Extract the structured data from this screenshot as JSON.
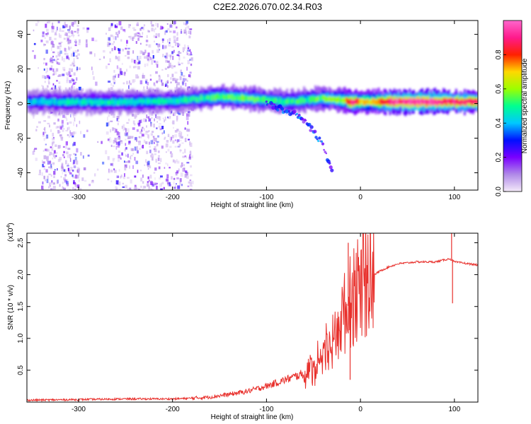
{
  "title": "C2E2.2026.070.02.34.R03",
  "chart_data": [
    {
      "type": "heatmap",
      "title": "C2E2.2026.070.02.34.R03",
      "xlabel": "Height of straight line (km)",
      "ylabel": "Frequency (Hz)",
      "xlim": [
        -355,
        125
      ],
      "ylim": [
        -50,
        48
      ],
      "xticks": [
        -300,
        -200,
        -100,
        0,
        100
      ],
      "yticks": [
        -40,
        -20,
        0,
        20,
        40
      ],
      "colorbar": {
        "label": "Normalized spectral amplitude",
        "range": [
          0,
          1
        ],
        "ticks": [
          0.0,
          0.2,
          0.4,
          0.6,
          0.8
        ],
        "tick_labels": [
          "0.0",
          "0.2",
          "0.4",
          "0.6",
          "0.8"
        ],
        "colors": [
          "#f4eaf9",
          "#b089e8",
          "#7a00ff",
          "#0010ff",
          "#00c8ff",
          "#00ff90",
          "#9cff00",
          "#ffd800",
          "#ff2000",
          "#ff1a8c",
          "#ff66cc"
        ]
      },
      "ridge": {
        "x": [
          -355,
          -300,
          -250,
          -200,
          -170,
          -150,
          -120,
          -100,
          -80,
          -60,
          -40,
          -20,
          -10,
          0,
          10,
          30,
          60,
          90,
          125
        ],
        "y": [
          1,
          1,
          1,
          1.5,
          3,
          4,
          3,
          2,
          1,
          2,
          3,
          2,
          1,
          1,
          1,
          1,
          1,
          1,
          1
        ],
        "amplitude": [
          0.4,
          0.45,
          0.45,
          0.45,
          0.5,
          0.55,
          0.55,
          0.5,
          0.5,
          0.5,
          0.55,
          0.6,
          0.9,
          0.7,
          0.7,
          0.9,
          0.95,
          0.9,
          0.85
        ]
      },
      "branch": {
        "x": [
          -100,
          -85,
          -70,
          -60,
          -50,
          -40,
          -30
        ],
        "y": [
          0,
          -3,
          -6,
          -10,
          -16,
          -24,
          -40
        ]
      },
      "noise_band_x": [
        -350,
        -180
      ]
    },
    {
      "type": "line",
      "xlabel": "Height of straight line (km)",
      "ylabel": "SNR (10 * v/v)",
      "y_multiplier": "(x10",
      "y_multiplier_exp": "4",
      "y_multiplier_close": ")",
      "xlim": [
        -355,
        125
      ],
      "ylim": [
        0,
        2.65
      ],
      "xticks": [
        -300,
        -200,
        -100,
        0,
        100
      ],
      "yticks": [
        0.5,
        1.0,
        1.5,
        2.0,
        2.5
      ],
      "ytick_labels": [
        "0.5",
        "1.0",
        "1.5",
        "2.0",
        "2.5"
      ],
      "color": "#e8302c",
      "series": {
        "x": [
          -355,
          -300,
          -250,
          -200,
          -180,
          -160,
          -140,
          -120,
          -100,
          -80,
          -60,
          -40,
          -30,
          -20,
          -10,
          0,
          10,
          20,
          30,
          40,
          60,
          80,
          95,
          100,
          110,
          125
        ],
        "y": [
          0.03,
          0.04,
          0.05,
          0.05,
          0.06,
          0.08,
          0.12,
          0.17,
          0.25,
          0.35,
          0.45,
          0.6,
          0.9,
          1.3,
          1.6,
          1.8,
          1.95,
          2.05,
          2.12,
          2.17,
          2.2,
          2.2,
          2.25,
          2.2,
          2.18,
          2.15
        ]
      },
      "spikes": [
        {
          "x": 97,
          "y": 2.65
        },
        {
          "x": 98,
          "y": 1.55
        },
        {
          "x": -13,
          "y": 2.5
        },
        {
          "x": -11,
          "y": 0.35
        }
      ]
    }
  ]
}
